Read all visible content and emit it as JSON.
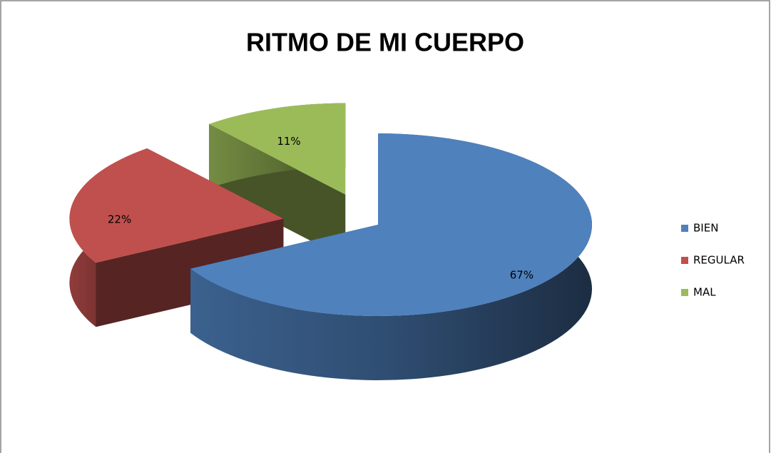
{
  "chart_data": {
    "type": "pie",
    "title": "RITMO DE MI CUERPO",
    "categories": [
      "BIEN",
      "REGULAR",
      "MAL"
    ],
    "values": [
      67,
      22,
      11
    ],
    "value_labels": [
      "67%",
      "22%",
      "11%"
    ],
    "colors": [
      "#4f81bd",
      "#c0504d",
      "#9bbb59"
    ],
    "legend": "right"
  }
}
